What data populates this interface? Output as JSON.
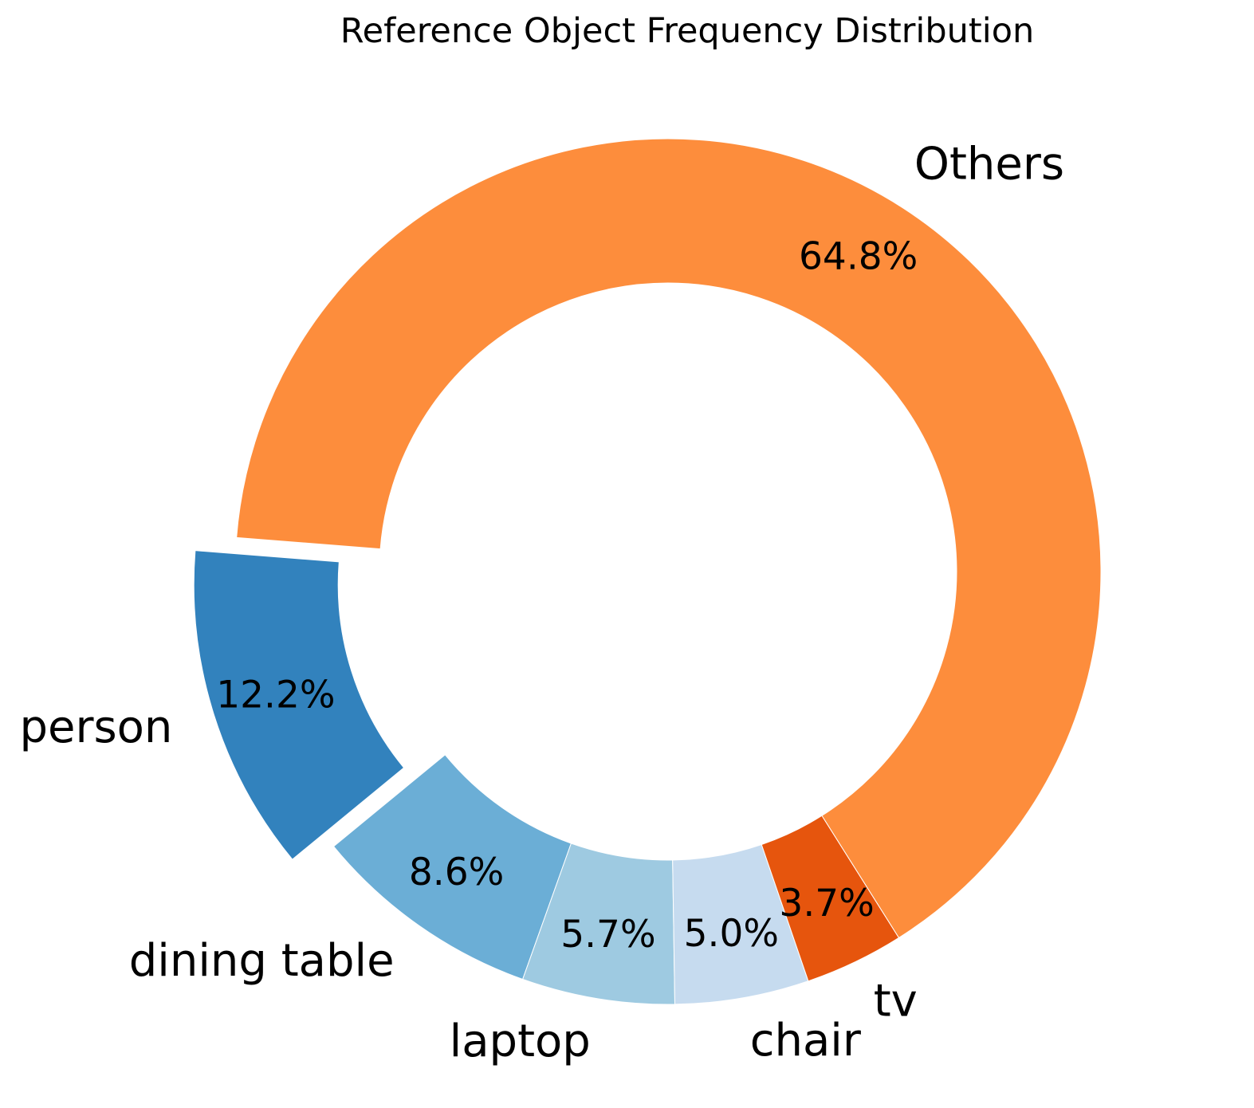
{
  "chart_data": {
    "type": "pie",
    "title": "Reference Object Frequency Distribution",
    "donut": true,
    "slices": [
      {
        "label": "person",
        "value": 12.2,
        "pct_text": "12.2%",
        "color": "#3282bd",
        "exploded": true
      },
      {
        "label": "dining table",
        "value": 8.6,
        "pct_text": "8.6%",
        "color": "#6baed6",
        "exploded": false
      },
      {
        "label": "laptop",
        "value": 5.7,
        "pct_text": "5.7%",
        "color": "#9ecae1",
        "exploded": false
      },
      {
        "label": "chair",
        "value": 5.0,
        "pct_text": "5.0%",
        "color": "#c6dbef",
        "exploded": false
      },
      {
        "label": "tv",
        "value": 3.7,
        "pct_text": "3.7%",
        "color": "#e6550d",
        "exploded": false
      },
      {
        "label": "Others",
        "value": 64.8,
        "pct_text": "64.8%",
        "color": "#fd8d3c",
        "exploded": false
      }
    ]
  }
}
